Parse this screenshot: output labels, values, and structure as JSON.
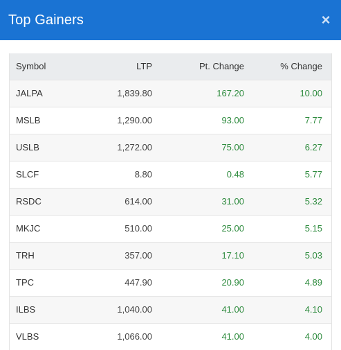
{
  "modal": {
    "title": "Top Gainers",
    "close_symbol": "×"
  },
  "table": {
    "headers": {
      "symbol": "Symbol",
      "ltp": "LTP",
      "pt_change": "Pt. Change",
      "pct_change": "% Change"
    },
    "rows": [
      {
        "symbol": "JALPA",
        "ltp": "1,839.80",
        "pt_change": "167.20",
        "pct_change": "10.00"
      },
      {
        "symbol": "MSLB",
        "ltp": "1,290.00",
        "pt_change": "93.00",
        "pct_change": "7.77"
      },
      {
        "symbol": "USLB",
        "ltp": "1,272.00",
        "pt_change": "75.00",
        "pct_change": "6.27"
      },
      {
        "symbol": "SLCF",
        "ltp": "8.80",
        "pt_change": "0.48",
        "pct_change": "5.77"
      },
      {
        "symbol": "RSDC",
        "ltp": "614.00",
        "pt_change": "31.00",
        "pct_change": "5.32"
      },
      {
        "symbol": "MKJC",
        "ltp": "510.00",
        "pt_change": "25.00",
        "pct_change": "5.15"
      },
      {
        "symbol": "TRH",
        "ltp": "357.00",
        "pt_change": "17.10",
        "pct_change": "5.03"
      },
      {
        "symbol": "TPC",
        "ltp": "447.90",
        "pt_change": "20.90",
        "pct_change": "4.89"
      },
      {
        "symbol": "ILBS",
        "ltp": "1,040.00",
        "pt_change": "41.00",
        "pct_change": "4.10"
      },
      {
        "symbol": "VLBS",
        "ltp": "1,066.00",
        "pt_change": "41.00",
        "pct_change": "4.00"
      }
    ]
  },
  "colors": {
    "header_bg": "#1a73d3",
    "gain": "#2e8b3e",
    "table_head_bg": "#eaecee"
  }
}
